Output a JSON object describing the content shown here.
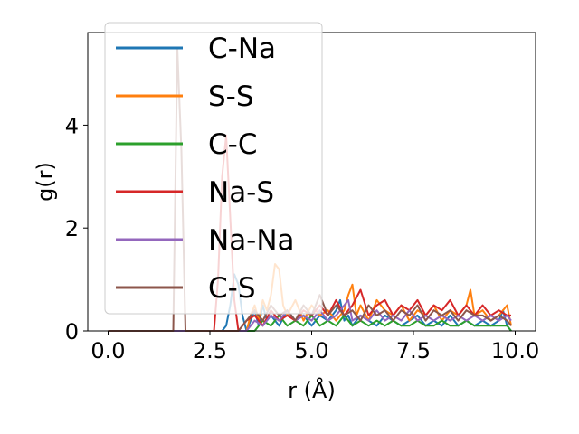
{
  "chart_data": {
    "type": "line",
    "xlabel": "r (Å)",
    "ylabel": "g(r)",
    "xlim": [
      -0.5,
      10.5
    ],
    "ylim": [
      0,
      5.8
    ],
    "xticks": [
      0.0,
      2.5,
      5.0,
      7.5,
      10.0
    ],
    "xtick_labels": [
      "0.0",
      "2.5",
      "5.0",
      "7.5",
      "10.0"
    ],
    "yticks": [
      0,
      2,
      4
    ],
    "ytick_labels": [
      "0",
      "2",
      "4"
    ],
    "grid": false,
    "legend_position": "upper-left",
    "series": [
      {
        "name": "C-Na",
        "color": "#1f77b4",
        "x": [
          0.0,
          2.8,
          2.9,
          3.0,
          3.1,
          3.2,
          3.3,
          3.4,
          3.5,
          3.6,
          3.7,
          3.8,
          3.9,
          4.0,
          4.2,
          4.4,
          4.6,
          4.8,
          5.0,
          5.2,
          5.4,
          5.6,
          5.7,
          5.8,
          5.9,
          6.0,
          6.2,
          6.4,
          6.6,
          6.8,
          7.0,
          7.2,
          7.4,
          7.6,
          7.8,
          8.0,
          8.2,
          8.4,
          8.6,
          8.8,
          9.0,
          9.2,
          9.4,
          9.6,
          9.7,
          9.8,
          9.9
        ],
        "y": [
          0.0,
          0.0,
          0.1,
          0.5,
          1.1,
          0.9,
          0.3,
          0.0,
          0.2,
          0.4,
          0.1,
          0.5,
          0.2,
          0.3,
          0.1,
          0.4,
          0.2,
          0.3,
          0.1,
          0.3,
          0.2,
          0.4,
          0.6,
          0.2,
          0.3,
          0.1,
          0.3,
          0.2,
          0.1,
          0.3,
          0.2,
          0.1,
          0.2,
          0.3,
          0.1,
          0.2,
          0.1,
          0.3,
          0.1,
          0.2,
          0.1,
          0.2,
          0.1,
          0.2,
          0.4,
          0.1,
          0.0
        ]
      },
      {
        "name": "S-S",
        "color": "#ff7f0e",
        "x": [
          0.0,
          3.4,
          3.5,
          3.6,
          3.7,
          3.8,
          3.9,
          4.0,
          4.1,
          4.2,
          4.3,
          4.4,
          4.6,
          4.8,
          5.0,
          5.2,
          5.4,
          5.6,
          5.8,
          5.9,
          6.0,
          6.1,
          6.2,
          6.4,
          6.6,
          6.8,
          7.0,
          7.2,
          7.4,
          7.6,
          7.8,
          8.0,
          8.2,
          8.4,
          8.6,
          8.8,
          8.9,
          9.0,
          9.2,
          9.4,
          9.6,
          9.8,
          9.9
        ],
        "y": [
          0.0,
          0.0,
          0.3,
          0.5,
          0.2,
          0.6,
          0.4,
          0.7,
          1.3,
          1.2,
          0.5,
          0.3,
          0.6,
          0.2,
          0.5,
          0.3,
          0.4,
          0.2,
          0.4,
          0.7,
          0.9,
          0.3,
          0.5,
          0.2,
          0.6,
          0.4,
          0.3,
          0.5,
          0.2,
          0.4,
          0.3,
          0.5,
          0.2,
          0.4,
          0.3,
          0.5,
          0.8,
          0.3,
          0.4,
          0.2,
          0.3,
          0.5,
          0.1
        ]
      },
      {
        "name": "C-C",
        "color": "#2ca02c",
        "x": [
          0.0,
          3.6,
          3.8,
          4.0,
          4.2,
          4.4,
          4.6,
          4.8,
          5.0,
          5.2,
          5.4,
          5.6,
          5.8,
          6.0,
          6.2,
          6.4,
          6.6,
          6.8,
          7.0,
          7.2,
          7.4,
          7.6,
          7.8,
          8.0,
          8.2,
          8.4,
          8.6,
          8.8,
          9.0,
          9.2,
          9.4,
          9.6,
          9.8,
          9.9
        ],
        "y": [
          0.0,
          0.0,
          0.2,
          0.1,
          0.3,
          0.1,
          0.2,
          0.1,
          0.3,
          0.1,
          0.2,
          0.1,
          0.3,
          0.1,
          0.2,
          0.1,
          0.2,
          0.1,
          0.2,
          0.1,
          0.1,
          0.2,
          0.1,
          0.1,
          0.2,
          0.1,
          0.1,
          0.2,
          0.1,
          0.1,
          0.1,
          0.1,
          0.1,
          0.0
        ]
      },
      {
        "name": "Na-S",
        "color": "#d62728",
        "x": [
          0.0,
          2.6,
          2.7,
          2.8,
          2.9,
          3.0,
          3.1,
          3.2,
          3.4,
          3.6,
          3.8,
          4.0,
          4.2,
          4.4,
          4.6,
          4.8,
          5.0,
          5.2,
          5.4,
          5.6,
          5.8,
          6.0,
          6.2,
          6.4,
          6.6,
          6.8,
          7.0,
          7.2,
          7.4,
          7.6,
          7.8,
          8.0,
          8.2,
          8.4,
          8.6,
          8.8,
          9.0,
          9.2,
          9.4,
          9.6,
          9.8,
          9.9
        ],
        "y": [
          0.0,
          0.0,
          1.0,
          3.0,
          3.8,
          2.2,
          0.6,
          0.0,
          0.2,
          0.3,
          0.1,
          0.4,
          0.2,
          0.3,
          0.2,
          0.4,
          0.3,
          0.5,
          0.3,
          0.6,
          0.3,
          0.5,
          0.8,
          0.3,
          0.5,
          0.6,
          0.3,
          0.5,
          0.4,
          0.6,
          0.3,
          0.5,
          0.4,
          0.6,
          0.3,
          0.5,
          0.3,
          0.5,
          0.3,
          0.4,
          0.3,
          0.3
        ]
      },
      {
        "name": "Na-Na",
        "color": "#9467bd",
        "x": [
          0.0,
          3.4,
          3.6,
          3.8,
          4.0,
          4.2,
          4.4,
          4.6,
          4.8,
          5.0,
          5.2,
          5.4,
          5.6,
          5.8,
          5.9,
          6.0,
          6.2,
          6.4,
          6.6,
          6.8,
          7.0,
          7.2,
          7.4,
          7.6,
          7.8,
          8.0,
          8.2,
          8.4,
          8.6,
          8.8,
          9.0,
          9.2,
          9.4,
          9.6,
          9.8,
          9.9
        ],
        "y": [
          0.0,
          0.0,
          0.2,
          0.1,
          0.3,
          0.2,
          0.4,
          0.2,
          0.3,
          0.2,
          0.4,
          0.2,
          0.3,
          0.5,
          0.6,
          0.2,
          0.3,
          0.2,
          0.4,
          0.2,
          0.3,
          0.2,
          0.4,
          0.2,
          0.3,
          0.2,
          0.3,
          0.2,
          0.3,
          0.2,
          0.3,
          0.2,
          0.3,
          0.2,
          0.3,
          0.2
        ]
      },
      {
        "name": "C-S",
        "color": "#8c564b",
        "x": [
          0.0,
          1.6,
          1.7,
          1.8,
          1.9,
          2.0,
          3.2,
          3.4,
          3.6,
          3.8,
          4.0,
          4.2,
          4.4,
          4.6,
          4.8,
          5.0,
          5.2,
          5.4,
          5.6,
          5.8,
          6.0,
          6.2,
          6.4,
          6.6,
          6.8,
          7.0,
          7.2,
          7.4,
          7.6,
          7.8,
          8.0,
          8.2,
          8.4,
          8.6,
          8.8,
          9.0,
          9.2,
          9.4,
          9.6,
          9.8,
          9.9
        ],
        "y": [
          0.0,
          0.0,
          5.5,
          3.5,
          0.0,
          0.0,
          0.0,
          0.2,
          0.4,
          0.2,
          0.5,
          0.3,
          0.4,
          0.2,
          0.5,
          0.3,
          0.7,
          0.3,
          0.5,
          0.3,
          0.4,
          0.2,
          0.5,
          0.3,
          0.4,
          0.2,
          0.4,
          0.3,
          0.5,
          0.2,
          0.4,
          0.3,
          0.4,
          0.2,
          0.4,
          0.3,
          0.3,
          0.2,
          0.3,
          0.2,
          0.1
        ]
      }
    ]
  }
}
